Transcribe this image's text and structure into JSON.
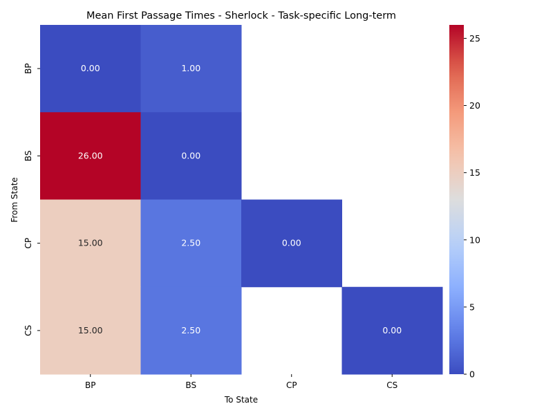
{
  "chart_data": {
    "type": "heatmap",
    "title": "Mean First Passage Times - Sherlock - Task-specific Long-term",
    "xlabel": "To State",
    "ylabel": "From State",
    "x_categories": [
      "BP",
      "BS",
      "CP",
      "CS"
    ],
    "y_categories": [
      "BP",
      "BS",
      "CP",
      "CS"
    ],
    "values": [
      [
        0.0,
        1.0,
        null,
        null
      ],
      [
        26.0,
        0.0,
        null,
        null
      ],
      [
        15.0,
        2.5,
        0.0,
        null
      ],
      [
        15.0,
        2.5,
        null,
        0.0
      ]
    ],
    "value_labels": [
      [
        "0.00",
        "1.00",
        null,
        null
      ],
      [
        "26.00",
        "0.00",
        null,
        null
      ],
      [
        "15.00",
        "2.50",
        "0.00",
        null
      ],
      [
        "15.00",
        "2.50",
        null,
        "0.00"
      ]
    ],
    "colormap": "coolwarm",
    "colorbar": {
      "range": [
        0,
        26
      ],
      "ticks": [
        "0",
        "5",
        "10",
        "15",
        "20",
        "25"
      ]
    }
  }
}
